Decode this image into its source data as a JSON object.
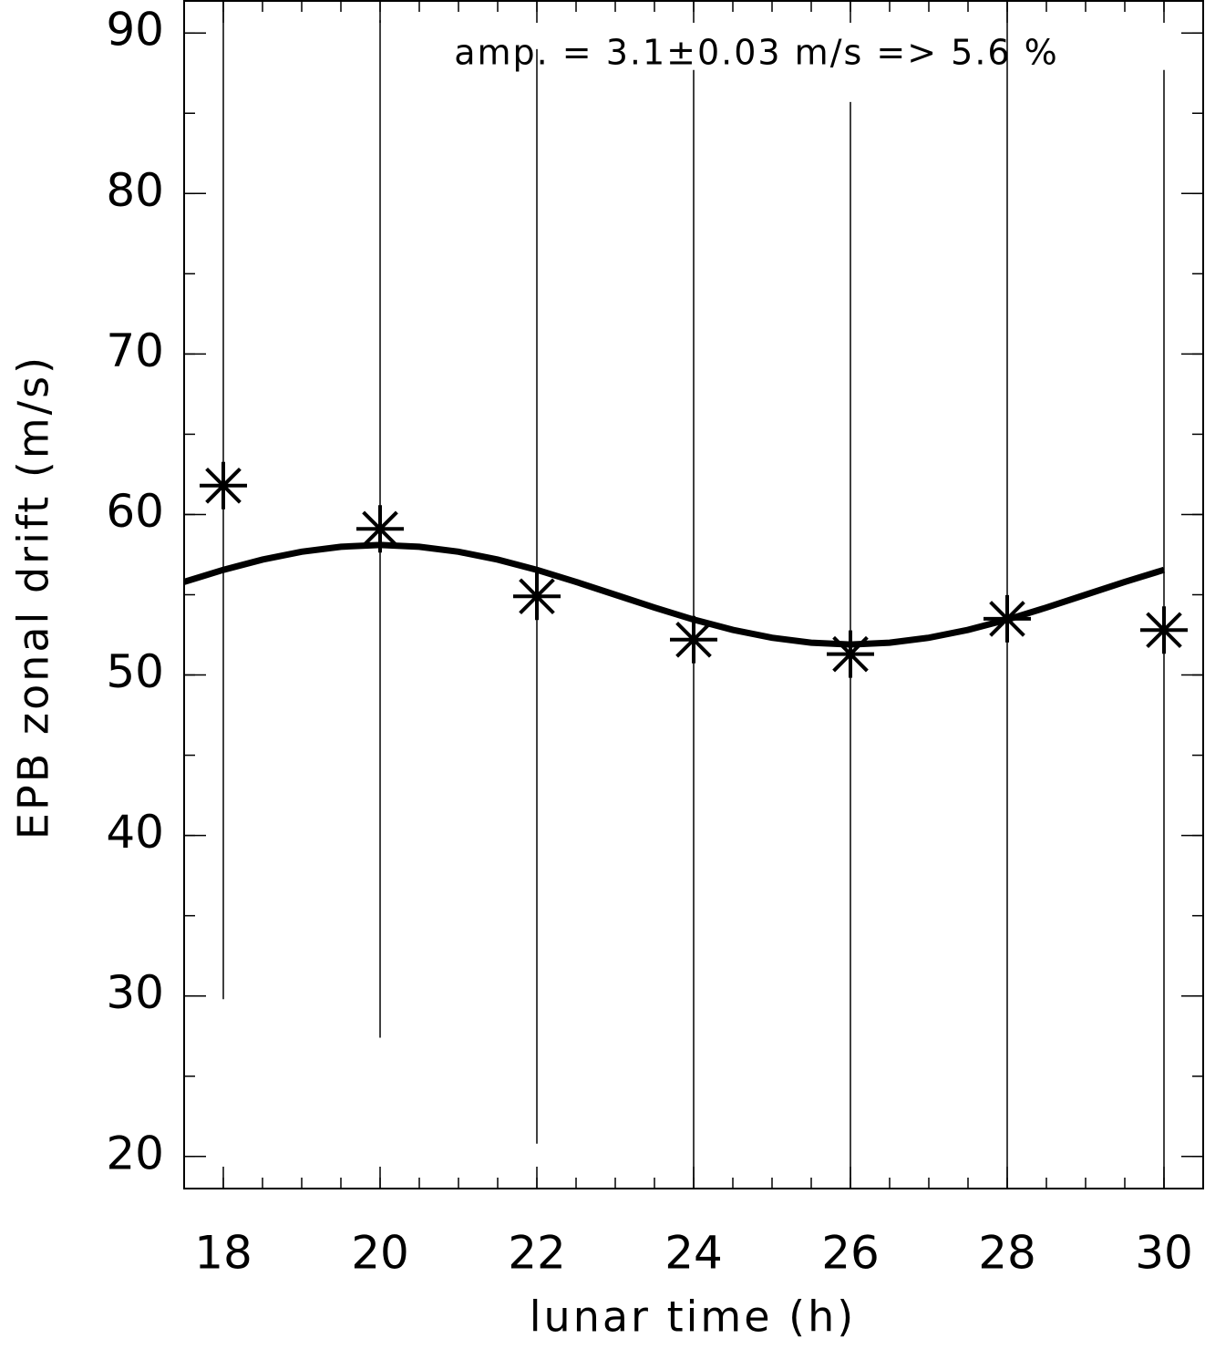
{
  "chart_data": {
    "type": "scatter",
    "annotation": "amp. = 3.1±0.03 m/s =>  5.6 %",
    "xlabel": "lunar time (h)",
    "ylabel": "EPB zonal drift (m/s)",
    "points": {
      "x": [
        18,
        20,
        22,
        24,
        26,
        28,
        30
      ],
      "values": [
        61.8,
        59.1,
        54.9,
        52.2,
        51.3,
        53.5,
        52.8
      ],
      "errors": [
        32,
        31.7,
        34.1,
        35.5,
        34.4,
        40,
        34.9
      ],
      "color": "#000000"
    },
    "fit": {
      "x": [
        17.5,
        18,
        18.5,
        19,
        19.5,
        20,
        20.5,
        21,
        21.5,
        22,
        22.5,
        23,
        23.5,
        24,
        24.5,
        25,
        25.5,
        26,
        26.5,
        27,
        27.5,
        28,
        28.5,
        29,
        29.5,
        30
      ],
      "values": [
        55.8,
        56.55,
        57.19,
        57.68,
        57.99,
        58.1,
        57.99,
        57.68,
        57.19,
        56.55,
        55.8,
        55.0,
        54.2,
        53.45,
        52.81,
        52.32,
        52.01,
        51.9,
        52.01,
        52.32,
        52.81,
        53.45,
        54.2,
        55.0,
        55.8,
        56.55
      ],
      "color": "#000000"
    },
    "xlim": [
      17.5,
      30.5
    ],
    "xticks": [
      18,
      20,
      22,
      24,
      26,
      28,
      30
    ],
    "xminor": 0.5,
    "ylim": [
      18,
      92
    ],
    "yticks": [
      20,
      30,
      40,
      50,
      60,
      70,
      80,
      90
    ],
    "yminor": 5
  }
}
